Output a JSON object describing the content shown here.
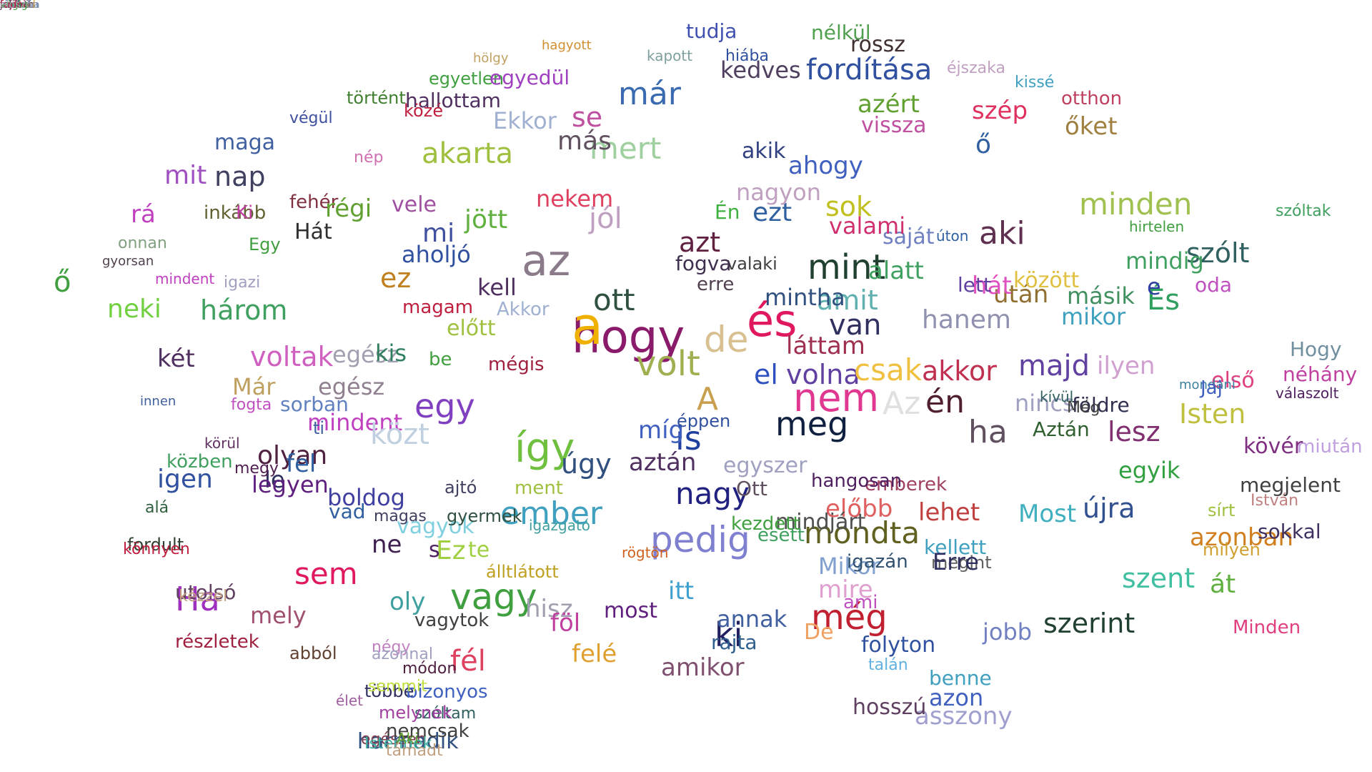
{
  "words": [
    {
      "text": "hogy",
      "color": "#8a1a6a"
    },
    {
      "text": "az",
      "color": "#8a7a8a"
    },
    {
      "text": "a",
      "color": "#f0b000"
    },
    {
      "text": "és",
      "color": "#e01860"
    },
    {
      "text": "nem",
      "color": "#e03890"
    },
    {
      "text": "meg",
      "color": "#102040"
    },
    {
      "text": "volt",
      "color": "#a0b050"
    },
    {
      "text": "de",
      "color": "#d8c090"
    },
    {
      "text": "egy",
      "color": "#8040c0"
    },
    {
      "text": "így",
      "color": "#70c040"
    },
    {
      "text": "A",
      "color": "#c8a050"
    },
    {
      "text": "is",
      "color": "#2040a0"
    },
    {
      "text": "el",
      "color": "#3050c0"
    },
    {
      "text": "volna",
      "color": "#6040a0"
    },
    {
      "text": "csak",
      "color": "#f0c040"
    },
    {
      "text": "Az",
      "color": "#e0e0e0"
    },
    {
      "text": "én",
      "color": "#502030"
    },
    {
      "text": "ha",
      "color": "#605060"
    },
    {
      "text": "már",
      "color": "#3a6ab0"
    },
    {
      "text": "mert",
      "color": "#a0d0a0"
    },
    {
      "text": "mint",
      "color": "#204030"
    },
    {
      "text": "azt",
      "color": "#602040"
    },
    {
      "text": "ezt",
      "color": "#3060a0"
    },
    {
      "text": "van",
      "color": "#303060"
    },
    {
      "text": "nagy",
      "color": "#202080"
    },
    {
      "text": "pedig",
      "color": "#8080d0"
    },
    {
      "text": "vagy",
      "color": "#40a040"
    },
    {
      "text": "ember",
      "color": "#40a0c0"
    },
    {
      "text": "még",
      "color": "#c02030"
    },
    {
      "text": "ki",
      "color": "#202060"
    },
    {
      "text": "mondta",
      "color": "#606020"
    },
    {
      "text": "aki",
      "color": "#603050"
    },
    {
      "text": "minden",
      "color": "#a0c050"
    },
    {
      "text": "sok",
      "color": "#c0c020"
    },
    {
      "text": "fordítása",
      "color": "#3050a0"
    },
    {
      "text": "kedves",
      "color": "#504060"
    },
    {
      "text": "rossz",
      "color": "#403030"
    },
    {
      "text": "tudja",
      "color": "#4050b0"
    },
    {
      "text": "nélkül",
      "color": "#50a050"
    },
    {
      "text": "szép",
      "color": "#e03060"
    },
    {
      "text": "őket",
      "color": "#a08040"
    },
    {
      "text": "otthon",
      "color": "#c04060"
    },
    {
      "text": "kissé",
      "color": "#40a0c0"
    },
    {
      "text": "éjszaka",
      "color": "#c0a0c0"
    },
    {
      "text": "szólt",
      "color": "#306060"
    },
    {
      "text": "És",
      "color": "#30a060"
    },
    {
      "text": "e",
      "color": "#3040a0"
    },
    {
      "text": "oda",
      "color": "#c050c0"
    },
    {
      "text": "Hogy",
      "color": "#7090a0"
    },
    {
      "text": "hanem",
      "color": "#9090b0"
    },
    {
      "text": "akkor",
      "color": "#c03050"
    },
    {
      "text": "majd",
      "color": "#6040a0"
    },
    {
      "text": "nincs",
      "color": "#a0a0c0"
    },
    {
      "text": "lesz",
      "color": "#803070"
    },
    {
      "text": "Isten",
      "color": "#c0c040"
    },
    {
      "text": "ilyen",
      "color": "#d0a0d0"
    },
    {
      "text": "első",
      "color": "#e04080"
    },
    {
      "text": "földre",
      "color": "#303050"
    },
    {
      "text": "Aztán",
      "color": "#306030"
    },
    {
      "text": "Még",
      "color": "#404040"
    },
    {
      "text": "egyik",
      "color": "#30a040"
    },
    {
      "text": "újra",
      "color": "#305090"
    },
    {
      "text": "Most",
      "color": "#40b0c0"
    },
    {
      "text": "lehet",
      "color": "#c04040"
    },
    {
      "text": "szent",
      "color": "#40c0a0"
    },
    {
      "text": "át",
      "color": "#60b040"
    },
    {
      "text": "szerint",
      "color": "#204030"
    },
    {
      "text": "azonban",
      "color": "#d08020"
    },
    {
      "text": "mikor",
      "color": "#40a0c0"
    },
    {
      "text": "másik",
      "color": "#409060"
    },
    {
      "text": "után",
      "color": "#907030"
    },
    {
      "text": "hát",
      "color": "#e050c0"
    },
    {
      "text": "között",
      "color": "#e0c040"
    },
    {
      "text": "lett",
      "color": "#6040a0"
    },
    {
      "text": "ő",
      "color": "#3060a0"
    },
    {
      "text": "vissza",
      "color": "#c050a0"
    },
    {
      "text": "azért",
      "color": "#60a030"
    },
    {
      "text": "amit",
      "color": "#60b0b0"
    },
    {
      "text": "alatt",
      "color": "#40a060"
    },
    {
      "text": "saját",
      "color": "#7080c0"
    },
    {
      "text": "mindig",
      "color": "#40a060"
    },
    {
      "text": "láttam",
      "color": "#a03050"
    },
    {
      "text": "mintha",
      "color": "#305080"
    },
    {
      "text": "valami",
      "color": "#d03070"
    },
    {
      "text": "ahogy",
      "color": "#4060c0"
    },
    {
      "text": "akik",
      "color": "#304080"
    },
    {
      "text": "nagyon",
      "color": "#c0a0c0"
    },
    {
      "text": "Én",
      "color": "#40b040"
    },
    {
      "text": "valaki",
      "color": "#404040"
    },
    {
      "text": "erre",
      "color": "#504050"
    },
    {
      "text": "fogva",
      "color": "#403050"
    },
    {
      "text": "ott",
      "color": "#305040"
    },
    {
      "text": "kell",
      "color": "#503060"
    },
    {
      "text": "ez",
      "color": "#c08020"
    },
    {
      "text": "aholjó",
      "color": "#3050a0"
    },
    {
      "text": "mi",
      "color": "#4050a0"
    },
    {
      "text": "jött",
      "color": "#60b040"
    },
    {
      "text": "jól",
      "color": "#c0a0c0"
    },
    {
      "text": "se",
      "color": "#c050a0"
    },
    {
      "text": "más",
      "color": "#605060"
    },
    {
      "text": "nekem",
      "color": "#e04060"
    },
    {
      "text": "Ekkor",
      "color": "#a0b0d0"
    },
    {
      "text": "hallottam",
      "color": "#503060"
    },
    {
      "text": "egyetlen",
      "color": "#40a040"
    },
    {
      "text": "egyedül",
      "color": "#a040c0"
    },
    {
      "text": "hölgy",
      "color": "#c0a060"
    },
    {
      "text": "hagyott",
      "color": "#d09030"
    },
    {
      "text": "kapott",
      "color": "#80a0a0"
    },
    {
      "text": "hiába",
      "color": "#3050a0"
    },
    {
      "text": "akarta",
      "color": "#a0c040"
    },
    {
      "text": "mit",
      "color": "#a050c0"
    },
    {
      "text": "nap",
      "color": "#404060"
    },
    {
      "text": "maga",
      "color": "#4060a0"
    },
    {
      "text": "történt",
      "color": "#408030"
    },
    {
      "text": "végül",
      "color": "#4050a0"
    },
    {
      "text": "közé",
      "color": "#c02040"
    },
    {
      "text": "nép",
      "color": "#d070b0"
    },
    {
      "text": "fehér",
      "color": "#803040"
    },
    {
      "text": "régi",
      "color": "#60a030"
    },
    {
      "text": "vele",
      "color": "#a050a0"
    },
    {
      "text": "Hát",
      "color": "#303030"
    },
    {
      "text": "Egy",
      "color": "#40a040"
    },
    {
      "text": "inkább",
      "color": "#606030"
    },
    {
      "text": "Ki",
      "color": "#c040a0"
    },
    {
      "text": "rá",
      "color": "#c040c0"
    },
    {
      "text": "ő",
      "color": "#40a040"
    },
    {
      "text": "neki",
      "color": "#70d040"
    },
    {
      "text": "három",
      "color": "#40a060"
    },
    {
      "text": "két",
      "color": "#503060"
    },
    {
      "text": "voltak",
      "color": "#d060c0"
    },
    {
      "text": "egész",
      "color": "#a0a0b0"
    },
    {
      "text": "kis",
      "color": "#308060"
    },
    {
      "text": "előtt",
      "color": "#a0c040"
    },
    {
      "text": "be",
      "color": "#40a040"
    },
    {
      "text": "mégis",
      "color": "#a02040"
    },
    {
      "text": "magam",
      "color": "#c02040"
    },
    {
      "text": "Akkor",
      "color": "#a0b0d0"
    },
    {
      "text": "Már",
      "color": "#c0a060"
    },
    {
      "text": "egész",
      "color": "#908090"
    },
    {
      "text": "mindent",
      "color": "#c040c0"
    },
    {
      "text": "közt",
      "color": "#c0d0e0"
    },
    {
      "text": "olyan",
      "color": "#502040"
    },
    {
      "text": "fel",
      "color": "#3060a0"
    },
    {
      "text": "le",
      "color": "#303060"
    },
    {
      "text": "igen",
      "color": "#3050a0"
    },
    {
      "text": "legyen",
      "color": "#602080"
    },
    {
      "text": "boldog",
      "color": "#4040a0"
    },
    {
      "text": "vad",
      "color": "#3060a0"
    },
    {
      "text": "vagyok",
      "color": "#80d0e0"
    },
    {
      "text": "ne",
      "color": "#402050"
    },
    {
      "text": "Ez",
      "color": "#a0d040"
    },
    {
      "text": "te",
      "color": "#a0d040"
    },
    {
      "text": "s",
      "color": "#502060"
    },
    {
      "text": "sem",
      "color": "#e01860"
    },
    {
      "text": "Ha",
      "color": "#a030c0"
    },
    {
      "text": "mely",
      "color": "#a05070"
    },
    {
      "text": "oly",
      "color": "#40a0a0"
    },
    {
      "text": "hisz",
      "color": "#a0a0b0"
    },
    {
      "text": "most",
      "color": "#602080"
    },
    {
      "text": "fél",
      "color": "#e04060"
    },
    {
      "text": "föl",
      "color": "#c040a0"
    },
    {
      "text": "felé",
      "color": "#e0a030"
    },
    {
      "text": "amikor",
      "color": "#805070"
    },
    {
      "text": "itt",
      "color": "#40a0d0"
    },
    {
      "text": "annak",
      "color": "#4060a0"
    },
    {
      "text": "rajta",
      "color": "#306090"
    },
    {
      "text": "De",
      "color": "#f0a060"
    },
    {
      "text": "mire",
      "color": "#e0a0d0"
    },
    {
      "text": "ami",
      "color": "#c050c0"
    },
    {
      "text": "azon",
      "color": "#4060c0"
    },
    {
      "text": "benne",
      "color": "#40a0c0"
    },
    {
      "text": "jobb",
      "color": "#7080c0"
    },
    {
      "text": "asszony",
      "color": "#a0a0d0"
    },
    {
      "text": "hosszú",
      "color": "#604060"
    },
    {
      "text": "folyton",
      "color": "#3050a0"
    },
    {
      "text": "talán",
      "color": "#60b0e0"
    },
    {
      "text": "úgy",
      "color": "#305080"
    },
    {
      "text": "míg",
      "color": "#4060c0"
    },
    {
      "text": "éppen",
      "color": "#3050a0"
    },
    {
      "text": "aztán",
      "color": "#503060"
    },
    {
      "text": "egyszer",
      "color": "#a0a0c0"
    },
    {
      "text": "Ott",
      "color": "#605060"
    },
    {
      "text": "előbb",
      "color": "#e06060"
    },
    {
      "text": "emberek",
      "color": "#a04060"
    },
    {
      "text": "hangosan",
      "color": "#502060"
    },
    {
      "text": "Mikor",
      "color": "#80a0d0"
    },
    {
      "text": "igazán",
      "color": "#305070"
    },
    {
      "text": "kellett",
      "color": "#40a0c0"
    },
    {
      "text": "megint",
      "color": "#606060"
    },
    {
      "text": "Erre",
      "color": "#303060"
    },
    {
      "text": "mindjárt",
      "color": "#505050"
    },
    {
      "text": "kezdett",
      "color": "#40a040"
    },
    {
      "text": "esett",
      "color": "#40a060"
    },
    {
      "text": "álltlátott",
      "color": "#c0a020"
    },
    {
      "text": "igazgató",
      "color": "#40a0a0"
    },
    {
      "text": "rögtön",
      "color": "#d06020"
    },
    {
      "text": "ment",
      "color": "#a0c040"
    },
    {
      "text": "ajtó",
      "color": "#404060"
    },
    {
      "text": "gyermek",
      "color": "#305040"
    },
    {
      "text": "magas",
      "color": "#404060"
    },
    {
      "text": "közben",
      "color": "#40a060"
    },
    {
      "text": "megy",
      "color": "#502050"
    },
    {
      "text": "sorban",
      "color": "#6080c0"
    },
    {
      "text": "ti",
      "color": "#4060a0"
    },
    {
      "text": "fogta",
      "color": "#c050c0"
    },
    {
      "text": "körül",
      "color": "#603060"
    },
    {
      "text": "innen",
      "color": "#4060a0"
    },
    {
      "text": "onnan",
      "color": "#80a080"
    },
    {
      "text": "gyorsan",
      "color": "#504050"
    },
    {
      "text": "mindent",
      "color": "#c040c0"
    },
    {
      "text": "igazi",
      "color": "#a0a0c0"
    },
    {
      "text": "mondani",
      "color": "#4080a0"
    },
    {
      "text": "kívül",
      "color": "#306060"
    },
    {
      "text": "úton",
      "color": "#3060a0"
    },
    {
      "text": "hirtelen",
      "color": "#40a040"
    },
    {
      "text": "szóltak",
      "color": "#40a060"
    },
    {
      "text": "néhány",
      "color": "#c040a0"
    },
    {
      "text": "Jaj",
      "color": "#4060c0"
    },
    {
      "text": "válaszolt",
      "color": "#502060"
    },
    {
      "text": "miután",
      "color": "#c0a0e0"
    },
    {
      "text": "kövér",
      "color": "#803080"
    },
    {
      "text": "sokkal",
      "color": "#403060"
    },
    {
      "text": "megjelent",
      "color": "#404040"
    },
    {
      "text": "István",
      "color": "#c08080"
    },
    {
      "text": "milyen",
      "color": "#d0a030"
    },
    {
      "text": "sírt",
      "color": "#a0c040"
    },
    {
      "text": "Minden",
      "color": "#e04080"
    },
    {
      "text": "fordult",
      "color": "#304030"
    },
    {
      "text": "alá",
      "color": "#306040"
    },
    {
      "text": "könnyen",
      "color": "#c02040"
    },
    {
      "text": "utolsó",
      "color": "#604060"
    },
    {
      "text": "kézzel",
      "color": "#c0a080"
    },
    {
      "text": "részletek",
      "color": "#a02040"
    },
    {
      "text": "abból",
      "color": "#604030"
    },
    {
      "text": "négy",
      "color": "#c080c0"
    },
    {
      "text": "módon",
      "color": "#502040"
    },
    {
      "text": "többé",
      "color": "#303060"
    },
    {
      "text": "harmadik",
      "color": "#305080"
    },
    {
      "text": "egészen",
      "color": "#804050"
    },
    {
      "text": "nemcsak",
      "color": "#404040"
    },
    {
      "text": "Istennek",
      "color": "#40b0a0"
    },
    {
      "text": "vagytok",
      "color": "#404040"
    },
    {
      "text": "szóltam",
      "color": "#306060"
    },
    {
      "text": "bizonyos",
      "color": "#4060c0"
    },
    {
      "text": "Aki",
      "color": "#60a030"
    },
    {
      "text": "élet",
      "color": "#a060a0"
    },
    {
      "text": "semmit",
      "color": "#c0e040"
    },
    {
      "text": "azonnal",
      "color": "#a0a0c0"
    },
    {
      "text": "melynek",
      "color": "#a040a0"
    },
    {
      "text": "támadt",
      "color": "#c0a080"
    },
    {
      "text": "lépcsőn",
      "color": "#4060a0"
    },
    {
      "text": "szabad",
      "color": "#d0a030"
    },
    {
      "text": "ezek",
      "color": "#5080a0"
    },
    {
      "text": "nézett",
      "color": "#504050"
    },
    {
      "text": "városba",
      "color": "#8090b0"
    },
    {
      "text": "fejét",
      "color": "#c04060"
    },
    {
      "text": "jobban",
      "color": "#604060"
    },
    {
      "text": "szólni",
      "color": "#505050"
    },
    {
      "text": "végig",
      "color": "#40a040"
    },
    {
      "text": "tudni",
      "color": "#c02050"
    },
    {
      "text": "először",
      "color": "#a0a0b0"
    }
  ]
}
